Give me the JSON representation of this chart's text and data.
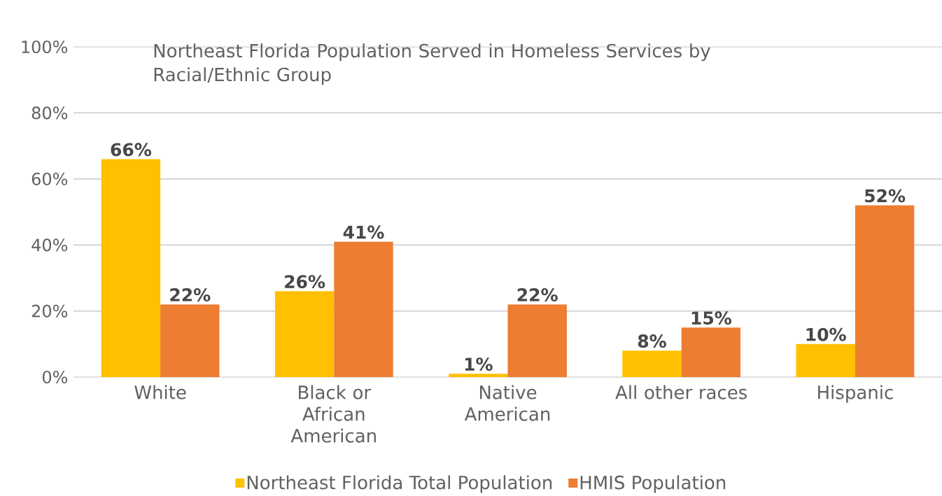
{
  "chart_data": {
    "type": "bar",
    "title": "Northeast Florida Population Served in Homeless Services by Racial/Ethnic Group",
    "categories": [
      "White",
      "Black or African American",
      "Native American",
      "All other races",
      "Hispanic"
    ],
    "series": [
      {
        "name": "Northeast Florida Total Population",
        "color": "#ffc000",
        "values": [
          66,
          26,
          1,
          8,
          10
        ],
        "value_labels": [
          "66%",
          "26%",
          "1%",
          "8%",
          "10%"
        ]
      },
      {
        "name": "HMIS Population",
        "color": "#ed7d31",
        "values": [
          22,
          41,
          22,
          15,
          52
        ],
        "value_labels": [
          "22%",
          "41%",
          "22%",
          "15%",
          "52%"
        ]
      }
    ],
    "ylim": [
      0,
      100
    ],
    "yticks": [
      {
        "value": 0,
        "label": "0%"
      },
      {
        "value": 20,
        "label": "20%"
      },
      {
        "value": 40,
        "label": "40%"
      },
      {
        "value": 60,
        "label": "60%"
      },
      {
        "value": 80,
        "label": "80%"
      },
      {
        "value": 100,
        "label": "100%"
      }
    ],
    "grid": "y",
    "legend": "bottom"
  }
}
